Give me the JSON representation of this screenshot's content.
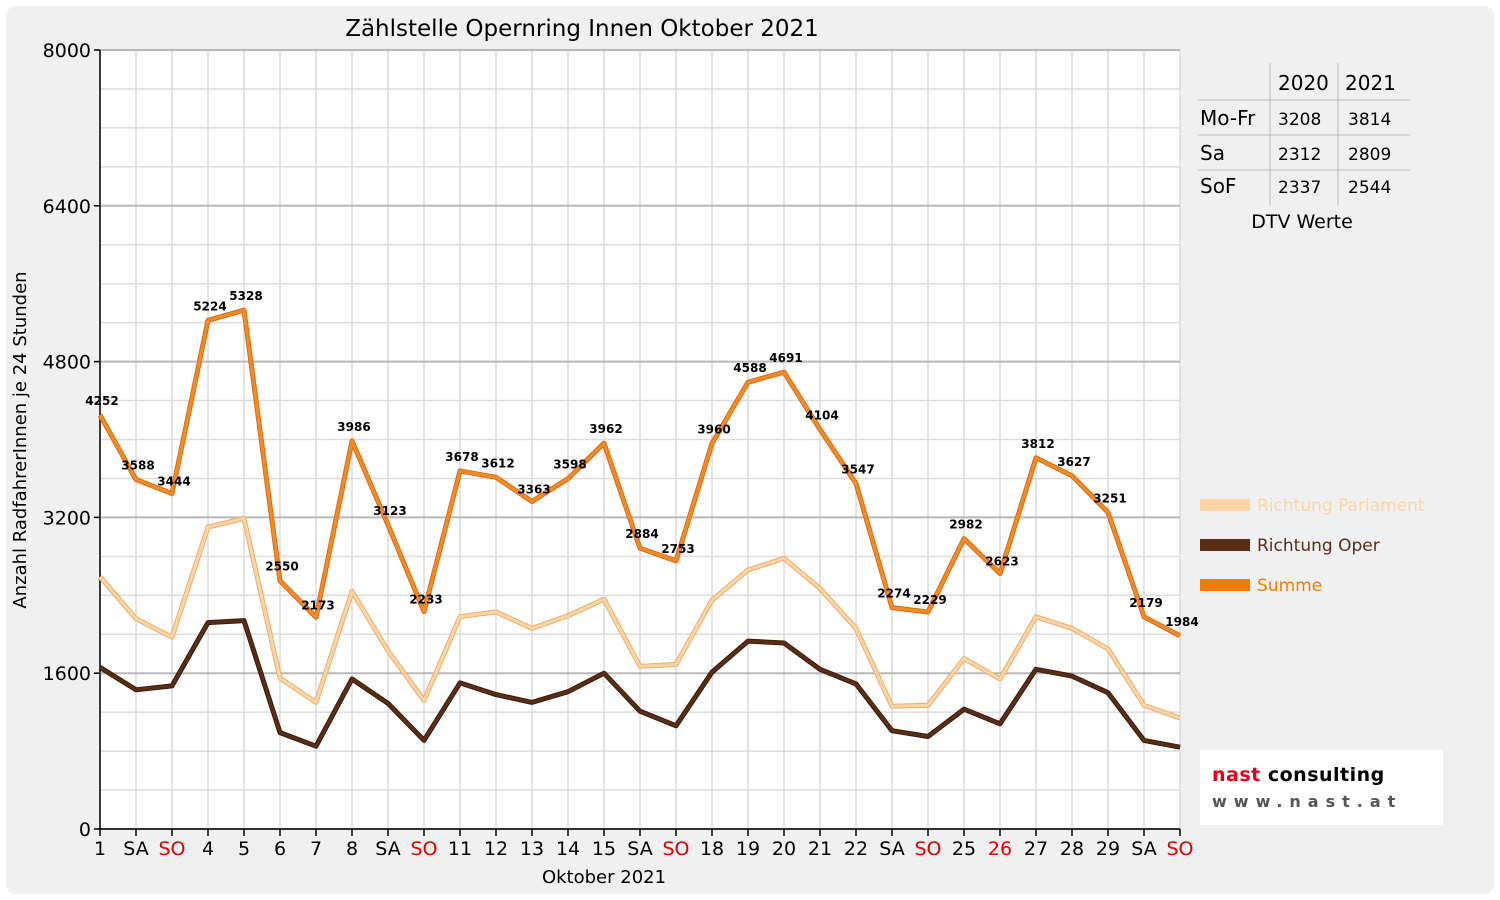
{
  "chart_data": {
    "type": "line",
    "title": "Zählstelle Opernring Innen Oktober 2021",
    "xlabel": "Oktober 2021",
    "ylabel": "Anzahl RadfahrerInnen je 24 Stunden",
    "ylim": [
      0,
      8000
    ],
    "yticks": [
      0,
      1600,
      3200,
      4800,
      6400,
      8000
    ],
    "grid": true,
    "legend_position": "right",
    "categories": [
      "1",
      "SA",
      "SO",
      "4",
      "5",
      "6",
      "7",
      "8",
      "SA",
      "SO",
      "11",
      "12",
      "13",
      "14",
      "15",
      "SA",
      "SO",
      "18",
      "19",
      "20",
      "21",
      "22",
      "SA",
      "SO",
      "25",
      "26",
      "27",
      "28",
      "29",
      "SA",
      "SO"
    ],
    "category_colors": [
      "#000000",
      "#000000",
      "#e00000",
      "#000000",
      "#000000",
      "#000000",
      "#000000",
      "#000000",
      "#000000",
      "#e00000",
      "#000000",
      "#000000",
      "#000000",
      "#000000",
      "#000000",
      "#000000",
      "#e00000",
      "#000000",
      "#000000",
      "#000000",
      "#000000",
      "#000000",
      "#000000",
      "#e00000",
      "#000000",
      "#e00000",
      "#000000",
      "#000000",
      "#000000",
      "#000000",
      "#e00000"
    ],
    "series": [
      {
        "name": "Richtung Parlament",
        "color": "#fad4a3",
        "values": [
          2590,
          2160,
          1970,
          3100,
          3190,
          1550,
          1300,
          2440,
          1830,
          1320,
          2180,
          2230,
          2060,
          2190,
          2360,
          1670,
          1690,
          2350,
          2660,
          2780,
          2470,
          2060,
          1260,
          1270,
          1750,
          1540,
          2180,
          2060,
          1850,
          1270,
          1140
        ]
      },
      {
        "name": "Richtung Oper",
        "color": "#5a2e16",
        "values": [
          1660,
          1430,
          1470,
          2120,
          2140,
          990,
          850,
          1540,
          1290,
          910,
          1500,
          1380,
          1300,
          1410,
          1600,
          1210,
          1060,
          1610,
          1930,
          1910,
          1640,
          1490,
          1010,
          950,
          1230,
          1080,
          1640,
          1570,
          1400,
          910,
          840
        ]
      },
      {
        "name": "Summe",
        "color": "#f08c28",
        "values": [
          4252,
          3588,
          3444,
          5224,
          5328,
          2550,
          2173,
          3986,
          3123,
          2233,
          3678,
          3612,
          3363,
          3598,
          3962,
          2884,
          2753,
          3960,
          4588,
          4691,
          4104,
          3547,
          2274,
          2229,
          2982,
          2623,
          3812,
          3627,
          3251,
          2179,
          1984
        ],
        "data_labels": true
      }
    ]
  },
  "dtv_table": {
    "headers": [
      "",
      "2020",
      "2021"
    ],
    "rows": [
      [
        "Mo-Fr",
        "3208",
        "3814"
      ],
      [
        "Sa",
        "2312",
        "2809"
      ],
      [
        "SoF",
        "2337",
        "2544"
      ]
    ],
    "caption": "DTV Werte"
  },
  "logo": {
    "name": "nast",
    "suffix": " consulting",
    "url": "www.nast.at"
  }
}
